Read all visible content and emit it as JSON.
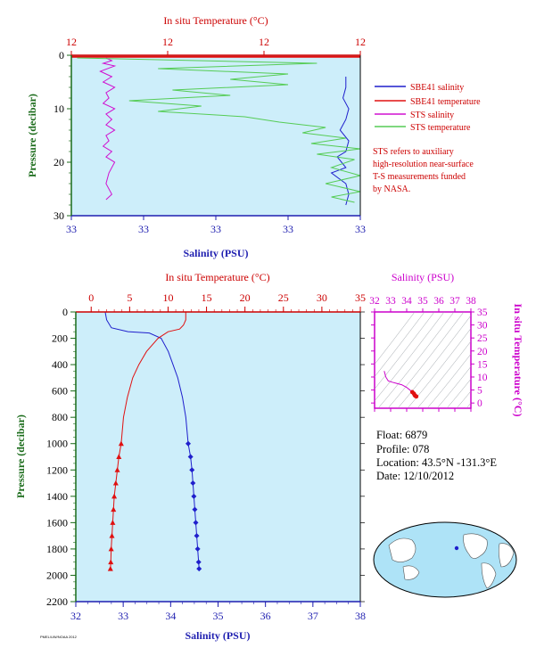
{
  "colors": {
    "plot_bg": "#cdeefa",
    "salinity": "#1f1fcc",
    "temperature": "#e01010",
    "sts_salinity": "#d010d0",
    "sts_temperature": "#55cc55",
    "red_axis": "#cc0000",
    "blue_axis": "#1f1fb0",
    "green_axis": "#1a6b1a",
    "magenta_axis": "#cc00cc"
  },
  "legend": {
    "items": [
      {
        "label": "SBE41 salinity",
        "color": "#1f1fcc"
      },
      {
        "label": "SBE41 temperature",
        "color": "#e01010"
      },
      {
        "label": "STS salinity",
        "color": "#d010d0"
      },
      {
        "label": "STS temperature",
        "color": "#55cc55"
      }
    ],
    "note_lines": [
      "STS refers to auxiliary",
      "high-resolution near-surface",
      "T-S measurements funded",
      "by NASA."
    ]
  },
  "info": {
    "float": "Float:  6879",
    "profile": "Profile:  078",
    "location": "Location:  43.5°N  -131.3°E",
    "date": "Date:  12/10/2012"
  },
  "footer": "PMEL/UW/NOAA 2012",
  "chart_data": [
    {
      "type": "line",
      "top_label": "In situ Temperature (°C)",
      "top_ticks": [
        "12",
        "12",
        "12",
        "12"
      ],
      "xlabel": "Salinity (PSU)",
      "bottom_ticks": [
        "33",
        "33",
        "33",
        "33",
        "33"
      ],
      "ylabel": "Pressure (decibar)",
      "ylim": [
        0,
        30
      ],
      "yticks": [
        "0",
        "10",
        "20",
        "30"
      ],
      "series": [
        {
          "name": "SBE41 salinity",
          "color_key": "salinity",
          "x": [
            0.95,
            0.95,
            0.94,
            0.96,
            0.95,
            0.93,
            0.96,
            0.95,
            0.92,
            0.95,
            0.9,
            0.95,
            0.96,
            0.95
          ],
          "y": [
            4,
            6,
            8,
            10,
            12,
            14,
            16,
            18,
            19,
            21,
            22,
            24,
            26,
            28
          ]
        },
        {
          "name": "SBE41 temperature",
          "color_key": "temperature",
          "x": [
            0.0,
            1.0
          ],
          "y": [
            0.3,
            0.3
          ]
        },
        {
          "name": "STS salinity",
          "color_key": "sts_salinity",
          "x": [
            0.12,
            0.14,
            0.11,
            0.15,
            0.1,
            0.14,
            0.11,
            0.15,
            0.12,
            0.13,
            0.11,
            0.15,
            0.12,
            0.14,
            0.12,
            0.15,
            0.12,
            0.13,
            0.11,
            0.14,
            0.12,
            0.15,
            0.13,
            0.12,
            0.14,
            0.12
          ],
          "y": [
            0.5,
            1,
            1.5,
            2,
            3,
            4,
            5,
            6,
            7,
            8,
            9,
            10,
            11,
            12,
            13,
            14,
            15,
            16,
            17,
            18,
            19,
            20,
            22,
            24,
            26,
            27
          ]
        },
        {
          "name": "STS temperature",
          "color_key": "sts_temperature",
          "x": [
            0.02,
            0.85,
            0.3,
            0.75,
            0.55,
            0.75,
            0.35,
            0.55,
            0.2,
            0.45,
            0.3,
            0.6,
            0.72,
            0.88,
            0.8,
            0.95,
            0.83,
            1.0,
            0.85,
            0.98,
            0.9,
            1.0,
            0.88,
            1.0,
            0.9,
            0.98
          ],
          "y": [
            0.5,
            1.5,
            2.5,
            3.5,
            4.5,
            5.5,
            6.5,
            7.5,
            8.5,
            9.5,
            10.5,
            11.5,
            12.5,
            13.5,
            14.5,
            15.5,
            16.5,
            17.5,
            18.5,
            19.5,
            21,
            22.5,
            24,
            25.5,
            26.5,
            27.5
          ]
        }
      ]
    },
    {
      "type": "line",
      "top_label": "In situ Temperature (°C)",
      "top_ticks": [
        "0",
        "5",
        "10",
        "15",
        "20",
        "25",
        "30",
        "35"
      ],
      "xlim_top": [
        -2,
        35
      ],
      "xlabel": "Salinity (PSU)",
      "bottom_ticks": [
        "32",
        "33",
        "34",
        "35",
        "36",
        "37",
        "38"
      ],
      "xlim": [
        32,
        38
      ],
      "ylabel": "Pressure (decibar)",
      "ylim": [
        0,
        2200
      ],
      "yticks": [
        "0",
        "200",
        "400",
        "600",
        "800",
        "1000",
        "1200",
        "1400",
        "1600",
        "1800",
        "2000",
        "2200"
      ],
      "series": [
        {
          "name": "Salinity",
          "color_key": "salinity",
          "marker": "diamond",
          "x": [
            32.62,
            32.65,
            32.75,
            33.1,
            33.55,
            33.8,
            33.95,
            34.05,
            34.15,
            34.25,
            34.32,
            34.37,
            34.42,
            34.45,
            34.47,
            34.49,
            34.51,
            34.53,
            34.55,
            34.57,
            34.59,
            34.6
          ],
          "y": [
            0,
            60,
            120,
            150,
            160,
            200,
            300,
            400,
            500,
            650,
            800,
            1000,
            1100,
            1200,
            1300,
            1400,
            1500,
            1600,
            1700,
            1800,
            1900,
            1950
          ]
        },
        {
          "name": "Temperature",
          "color_key": "temperature",
          "marker": "triangle",
          "x": [
            12.3,
            12.3,
            12.0,
            11.5,
            10.0,
            8.7,
            7.2,
            6.2,
            5.4,
            4.7,
            4.2,
            3.9,
            3.6,
            3.4,
            3.2,
            3.0,
            2.9,
            2.8,
            2.7,
            2.6,
            2.55,
            2.5
          ],
          "y": [
            0,
            60,
            100,
            130,
            150,
            200,
            300,
            400,
            500,
            650,
            800,
            1000,
            1100,
            1200,
            1300,
            1400,
            1500,
            1600,
            1700,
            1800,
            1900,
            1950
          ]
        }
      ]
    },
    {
      "type": "scatter",
      "top_label": "Salinity (PSU)",
      "top_ticks": [
        "32",
        "33",
        "34",
        "35",
        "36",
        "37",
        "38"
      ],
      "xlim": [
        32,
        38
      ],
      "ylabel": "In situ Temperature (°C)",
      "yticks": [
        "0",
        "5",
        "10",
        "15",
        "20",
        "25",
        "30",
        "35"
      ],
      "ylim": [
        -2,
        35
      ],
      "series": [
        {
          "name": "T-S",
          "color_key": "temperature",
          "x": [
            32.6,
            32.7,
            32.85,
            33.1,
            33.4,
            33.7,
            34.0,
            34.2,
            34.35,
            34.45,
            34.5,
            34.55,
            34.6
          ],
          "y": [
            12.3,
            10.0,
            8.5,
            8.0,
            7.5,
            7.0,
            6.0,
            5.0,
            4.2,
            3.6,
            3.0,
            2.7,
            2.5
          ]
        }
      ]
    }
  ]
}
